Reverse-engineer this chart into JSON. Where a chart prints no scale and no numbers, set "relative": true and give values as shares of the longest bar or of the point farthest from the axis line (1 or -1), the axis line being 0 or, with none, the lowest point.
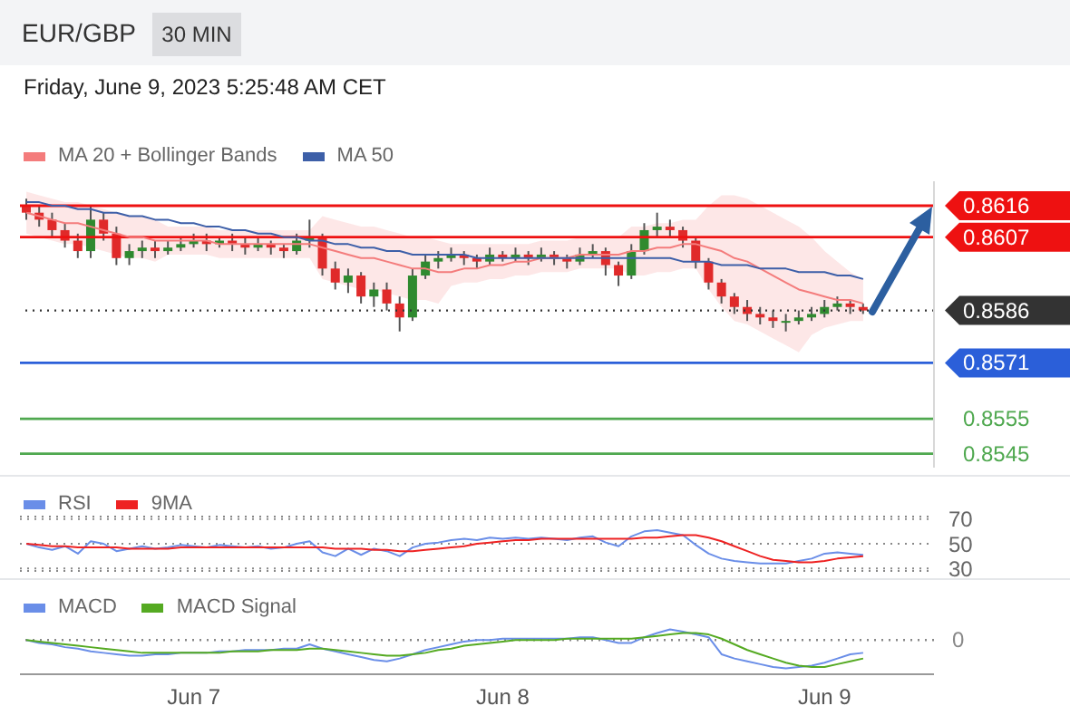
{
  "chart_data": [
    {
      "type": "candlestick",
      "title": "EUR/GBP",
      "subtitle": "30 MIN",
      "annotations": [
        "Friday, June 9, 2023 5:25:48 AM CET"
      ],
      "legend": "top left",
      "tick_labels": "y",
      "ylim": [
        0.8541,
        0.8623
      ],
      "yticks": [
        0.8616,
        0.8607,
        0.8586,
        0.8571,
        0.8555,
        0.8545
      ],
      "categories": [
        null,
        null,
        null,
        null,
        null,
        null,
        null,
        null,
        null,
        null,
        null,
        null,
        null,
        null,
        null,
        null,
        null,
        null,
        null,
        null,
        null,
        null,
        null,
        null,
        null,
        null,
        null,
        null,
        null,
        null,
        null,
        null,
        null,
        null,
        null,
        null,
        null,
        null,
        null,
        null,
        null,
        null,
        null,
        null,
        null,
        null,
        null,
        null,
        null,
        null,
        null,
        null,
        null,
        null,
        null,
        null,
        null,
        null,
        null,
        null,
        null,
        null,
        null,
        null,
        null,
        null
      ],
      "ohlc": [
        [
          0.8616,
          0.8618,
          0.8612,
          0.8614
        ],
        [
          0.8614,
          0.8616,
          0.861,
          0.8612
        ],
        [
          0.8612,
          0.8614,
          0.8607,
          0.8609
        ],
        [
          0.8609,
          0.8611,
          0.8604,
          0.8606
        ],
        [
          0.8606,
          0.8608,
          0.8601,
          0.8603
        ],
        [
          0.8603,
          0.8616,
          0.8601,
          0.8612
        ],
        [
          0.8612,
          0.8614,
          0.8606,
          0.8608
        ],
        [
          0.8608,
          0.861,
          0.8599,
          0.8601
        ],
        [
          0.8601,
          0.8605,
          0.8599,
          0.8603
        ],
        [
          0.8603,
          0.8606,
          0.8601,
          0.8604
        ],
        [
          0.8604,
          0.8606,
          0.8601,
          0.8603
        ],
        [
          0.8603,
          0.8606,
          0.8602,
          0.8604
        ],
        [
          0.8604,
          0.8607,
          0.8603,
          0.8605
        ],
        [
          0.8605,
          0.8608,
          0.8604,
          0.8606
        ],
        [
          0.8606,
          0.8608,
          0.8603,
          0.8605
        ],
        [
          0.8605,
          0.8607,
          0.8604,
          0.8606
        ],
        [
          0.8606,
          0.8608,
          0.8603,
          0.8605
        ],
        [
          0.8605,
          0.8607,
          0.8602,
          0.8604
        ],
        [
          0.8604,
          0.8607,
          0.8603,
          0.8605
        ],
        [
          0.8605,
          0.8606,
          0.8602,
          0.8604
        ],
        [
          0.8604,
          0.8605,
          0.8601,
          0.8603
        ],
        [
          0.8603,
          0.8608,
          0.8602,
          0.8606
        ],
        [
          0.8606,
          0.8612,
          0.8604,
          0.8607
        ],
        [
          0.8607,
          0.8608,
          0.8596,
          0.8598
        ],
        [
          0.8598,
          0.86,
          0.8592,
          0.8594
        ],
        [
          0.8594,
          0.8598,
          0.8591,
          0.8596
        ],
        [
          0.8596,
          0.8597,
          0.8588,
          0.859
        ],
        [
          0.859,
          0.8594,
          0.8587,
          0.8592
        ],
        [
          0.8592,
          0.8594,
          0.8586,
          0.8588
        ],
        [
          0.8588,
          0.859,
          0.858,
          0.8584
        ],
        [
          0.8584,
          0.8598,
          0.8583,
          0.8596
        ],
        [
          0.8596,
          0.8602,
          0.8595,
          0.86
        ],
        [
          0.86,
          0.8603,
          0.8598,
          0.8601
        ],
        [
          0.8601,
          0.8604,
          0.86,
          0.8602
        ],
        [
          0.8602,
          0.8603,
          0.8599,
          0.8601
        ],
        [
          0.8601,
          0.8602,
          0.8598,
          0.86
        ],
        [
          0.86,
          0.8604,
          0.8599,
          0.8602
        ],
        [
          0.8602,
          0.8603,
          0.86,
          0.8601
        ],
        [
          0.8601,
          0.8604,
          0.86,
          0.8602
        ],
        [
          0.8602,
          0.8603,
          0.8599,
          0.8601
        ],
        [
          0.8601,
          0.8604,
          0.86,
          0.8602
        ],
        [
          0.8602,
          0.8603,
          0.8599,
          0.8601
        ],
        [
          0.8601,
          0.8602,
          0.8598,
          0.86
        ],
        [
          0.86,
          0.8604,
          0.8599,
          0.8602
        ],
        [
          0.8602,
          0.8605,
          0.8601,
          0.8603
        ],
        [
          0.8603,
          0.8604,
          0.8596,
          0.8599
        ],
        [
          0.8599,
          0.86,
          0.8593,
          0.8596
        ],
        [
          0.8596,
          0.8605,
          0.8595,
          0.8603
        ],
        [
          0.8603,
          0.8611,
          0.8602,
          0.8609
        ],
        [
          0.8609,
          0.8614,
          0.8607,
          0.861
        ],
        [
          0.861,
          0.8612,
          0.8607,
          0.8609
        ],
        [
          0.8609,
          0.861,
          0.8604,
          0.8606
        ],
        [
          0.8606,
          0.8607,
          0.8598,
          0.86
        ],
        [
          0.86,
          0.8601,
          0.8592,
          0.8594
        ],
        [
          0.8594,
          0.8595,
          0.8588,
          0.859
        ],
        [
          0.859,
          0.8591,
          0.8585,
          0.8587
        ],
        [
          0.8587,
          0.8589,
          0.8583,
          0.8585
        ],
        [
          0.8585,
          0.8587,
          0.8582,
          0.8584
        ],
        [
          0.8584,
          0.8586,
          0.8581,
          0.8583
        ],
        [
          0.8583,
          0.8585,
          0.858,
          0.8583
        ],
        [
          0.8583,
          0.8586,
          0.8582,
          0.8584
        ],
        [
          0.8584,
          0.8587,
          0.8583,
          0.8585
        ],
        [
          0.8585,
          0.8589,
          0.8584,
          0.8587
        ],
        [
          0.8587,
          0.859,
          0.8586,
          0.8588
        ],
        [
          0.8588,
          0.8589,
          0.8585,
          0.8587
        ],
        [
          0.8587,
          0.8588,
          0.8585,
          0.8586
        ]
      ],
      "series": [
        {
          "name": "MA 20 + Bollinger Bands",
          "type": "line",
          "color": "#f47c7c",
          "values": [
            0.8614,
            0.8613,
            0.8612,
            0.8611,
            0.8611,
            0.861,
            0.8609,
            0.8608,
            0.8607,
            0.8607,
            0.8606,
            0.8606,
            0.8606,
            0.8606,
            0.8606,
            0.8605,
            0.8605,
            0.8605,
            0.8605,
            0.8605,
            0.8605,
            0.8605,
            0.8605,
            0.8604,
            0.8603,
            0.8602,
            0.8601,
            0.8601,
            0.86,
            0.8599,
            0.8598,
            0.8598,
            0.8597,
            0.8597,
            0.8598,
            0.8598,
            0.8599,
            0.8599,
            0.86,
            0.86,
            0.8601,
            0.8601,
            0.8601,
            0.8602,
            0.8602,
            0.8602,
            0.8602,
            0.8603,
            0.8603,
            0.8604,
            0.8604,
            0.8605,
            0.8605,
            0.8604,
            0.8603,
            0.8601,
            0.86,
            0.8598,
            0.8596,
            0.8594,
            0.8592,
            0.8591,
            0.859,
            0.8589,
            0.8589,
            0.8588
          ],
          "lower": [
            0.8608,
            0.8607,
            0.8606,
            0.8605,
            0.8605,
            0.8604,
            0.8603,
            0.8602,
            0.8601,
            0.8601,
            0.86,
            0.8602,
            0.8602,
            0.8602,
            0.8602,
            0.8601,
            0.8601,
            0.8601,
            0.8601,
            0.8601,
            0.8601,
            0.8601,
            0.8601,
            0.8595,
            0.8594,
            0.8593,
            0.8592,
            0.8592,
            0.8591,
            0.859,
            0.8589,
            0.8589,
            0.8588,
            0.8593,
            0.8594,
            0.8594,
            0.8595,
            0.8595,
            0.8596,
            0.8596,
            0.8597,
            0.8597,
            0.8597,
            0.8598,
            0.8598,
            0.8598,
            0.8598,
            0.8596,
            0.8596,
            0.8597,
            0.8597,
            0.8598,
            0.8598,
            0.8592,
            0.8587,
            0.8583,
            0.8582,
            0.858,
            0.8578,
            0.8576,
            0.8574,
            0.8579,
            0.8581,
            0.8582,
            0.8583,
            0.8583
          ],
          "upper": [
            0.862,
            0.8619,
            0.8618,
            0.8617,
            0.8617,
            0.8616,
            0.8615,
            0.8614,
            0.8613,
            0.8613,
            0.8612,
            0.861,
            0.861,
            0.861,
            0.861,
            0.8609,
            0.8609,
            0.8609,
            0.8609,
            0.8609,
            0.8609,
            0.8609,
            0.8609,
            0.8613,
            0.8612,
            0.8611,
            0.861,
            0.861,
            0.8609,
            0.8608,
            0.8607,
            0.8607,
            0.8606,
            0.8605,
            0.8605,
            0.8605,
            0.8605,
            0.8605,
            0.8605,
            0.8605,
            0.8606,
            0.8606,
            0.8606,
            0.8607,
            0.8607,
            0.8607,
            0.8607,
            0.861,
            0.861,
            0.8611,
            0.8611,
            0.8612,
            0.8612,
            0.8616,
            0.8619,
            0.8619,
            0.8618,
            0.8616,
            0.8614,
            0.8612,
            0.861,
            0.8607,
            0.8603,
            0.86,
            0.8597,
            0.8595
          ]
        },
        {
          "name": "MA 50",
          "type": "line",
          "color": "#3d5fa8",
          "values": [
            0.8617,
            0.8617,
            0.8616,
            0.8616,
            0.8615,
            0.8615,
            0.8614,
            0.8614,
            0.8613,
            0.8613,
            0.8612,
            0.8612,
            0.8611,
            0.8611,
            0.861,
            0.861,
            0.8609,
            0.8609,
            0.8608,
            0.8608,
            0.8607,
            0.8607,
            0.8606,
            0.8606,
            0.8605,
            0.8605,
            0.8604,
            0.8604,
            0.8603,
            0.8603,
            0.8602,
            0.8602,
            0.8602,
            0.8602,
            0.8602,
            0.8601,
            0.8601,
            0.8601,
            0.8601,
            0.8601,
            0.8601,
            0.8601,
            0.8601,
            0.8601,
            0.8601,
            0.8601,
            0.8601,
            0.8601,
            0.8601,
            0.8601,
            0.8601,
            0.86,
            0.86,
            0.86,
            0.8599,
            0.8599,
            0.8599,
            0.8598,
            0.8598,
            0.8598,
            0.8597,
            0.8597,
            0.8597,
            0.8596,
            0.8596,
            0.8595
          ]
        }
      ],
      "ref_lines": [
        {
          "axis": "y",
          "value": 0.8616,
          "color": "#ee1111",
          "line_style": "solid"
        },
        {
          "axis": "y",
          "value": 0.8607,
          "color": "#ee1111",
          "line_style": "solid"
        },
        {
          "axis": "y",
          "value": 0.8586,
          "color": "#333333",
          "line_style": "dotted"
        },
        {
          "axis": "y",
          "value": 0.8571,
          "color": "#2b5fd9",
          "line_style": "solid"
        },
        {
          "axis": "y",
          "value": 0.8555,
          "color": "#4fa84f",
          "line_style": "solid"
        },
        {
          "axis": "y",
          "value": 0.8545,
          "color": "#4fa84f",
          "line_style": "solid"
        }
      ]
    },
    {
      "type": "line",
      "legend": "top left",
      "tick_labels": "y",
      "grid": "y",
      "ylim": [
        28,
        72
      ],
      "yticks": [
        30,
        50,
        70
      ],
      "categories": [
        null,
        null,
        null,
        null,
        null,
        null,
        null,
        null,
        null,
        null,
        null,
        null,
        null,
        null,
        null,
        null,
        null,
        null,
        null,
        null,
        null,
        null,
        null,
        null,
        null,
        null,
        null,
        null,
        null,
        null,
        null,
        null,
        null,
        null,
        null,
        null,
        null,
        null,
        null,
        null,
        null,
        null,
        null,
        null,
        null,
        null,
        null,
        null,
        null,
        null,
        null,
        null,
        null,
        null,
        null,
        null,
        null,
        null,
        null,
        null,
        null,
        null,
        null,
        null,
        null,
        null
      ],
      "series": [
        {
          "name": "RSI",
          "color": "#6a8ee8",
          "values": [
            50,
            47,
            45,
            48,
            42,
            52,
            50,
            44,
            46,
            48,
            46,
            47,
            49,
            48,
            47,
            49,
            48,
            47,
            48,
            46,
            47,
            50,
            52,
            43,
            40,
            46,
            41,
            46,
            44,
            40,
            47,
            50,
            51,
            53,
            54,
            53,
            55,
            54,
            55,
            54,
            55,
            54,
            53,
            55,
            56,
            51,
            48,
            56,
            60,
            61,
            59,
            57,
            49,
            42,
            38,
            36,
            35,
            34,
            34,
            34,
            36,
            38,
            42,
            43,
            42,
            41
          ]
        },
        {
          "name": "9MA",
          "color": "#ee2222",
          "values": [
            50,
            49,
            48,
            48,
            47,
            47,
            47,
            47,
            46,
            46,
            46,
            46,
            47,
            47,
            47,
            47,
            47,
            47,
            47,
            47,
            47,
            47,
            47,
            47,
            46,
            46,
            46,
            45,
            45,
            44,
            44,
            45,
            46,
            47,
            48,
            50,
            51,
            52,
            53,
            53,
            54,
            54,
            54,
            54,
            54,
            54,
            54,
            54,
            55,
            55,
            56,
            57,
            57,
            55,
            52,
            48,
            44,
            40,
            37,
            36,
            35,
            35,
            36,
            38,
            39,
            40
          ]
        }
      ]
    },
    {
      "type": "line",
      "legend": "top left",
      "tick_labels": "x",
      "relative": true,
      "categories": [
        null,
        null,
        null,
        null,
        null,
        null,
        null,
        null,
        null,
        null,
        null,
        null,
        null,
        "Jun 7",
        null,
        null,
        null,
        null,
        null,
        null,
        null,
        null,
        null,
        null,
        null,
        null,
        null,
        null,
        null,
        null,
        null,
        null,
        null,
        null,
        null,
        null,
        null,
        "Jun 8",
        null,
        null,
        null,
        null,
        null,
        null,
        null,
        null,
        null,
        null,
        null,
        null,
        null,
        null,
        null,
        null,
        null,
        null,
        null,
        null,
        null,
        null,
        null,
        null,
        "Jun 9",
        null,
        null,
        null
      ],
      "series": [
        {
          "name": "MACD",
          "color": "#6a8ee8",
          "values": [
            0,
            -0.1,
            -0.15,
            -0.25,
            -0.3,
            -0.4,
            -0.45,
            -0.5,
            -0.55,
            -0.55,
            -0.5,
            -0.5,
            -0.45,
            -0.45,
            -0.45,
            -0.4,
            -0.4,
            -0.35,
            -0.35,
            -0.35,
            -0.3,
            -0.3,
            -0.15,
            -0.3,
            -0.4,
            -0.5,
            -0.6,
            -0.7,
            -0.75,
            -0.65,
            -0.5,
            -0.35,
            -0.25,
            -0.15,
            -0.05,
            0,
            0,
            0.05,
            0.05,
            0.05,
            0.05,
            0.05,
            0.05,
            0.1,
            0.1,
            0,
            -0.1,
            -0.1,
            0.1,
            0.25,
            0.38,
            0.3,
            0.2,
            0.1,
            -0.5,
            -0.65,
            -0.75,
            -0.85,
            -0.95,
            -1,
            -0.95,
            -0.9,
            -0.8,
            -0.65,
            -0.5,
            -0.45
          ]
        },
        {
          "name": "MACD Signal",
          "color": "#55aa22",
          "values": [
            0,
            -0.05,
            -0.1,
            -0.15,
            -0.2,
            -0.25,
            -0.3,
            -0.35,
            -0.4,
            -0.45,
            -0.45,
            -0.45,
            -0.45,
            -0.45,
            -0.45,
            -0.45,
            -0.4,
            -0.4,
            -0.4,
            -0.35,
            -0.35,
            -0.35,
            -0.3,
            -0.3,
            -0.35,
            -0.4,
            -0.45,
            -0.5,
            -0.55,
            -0.55,
            -0.5,
            -0.45,
            -0.35,
            -0.3,
            -0.2,
            -0.15,
            -0.1,
            -0.05,
            0,
            0,
            0,
            0,
            0.05,
            0.05,
            0.05,
            0.05,
            0.05,
            0.05,
            0.1,
            0.15,
            0.2,
            0.25,
            0.25,
            0.2,
            0.05,
            -0.15,
            -0.35,
            -0.5,
            -0.65,
            -0.8,
            -0.9,
            -0.95,
            -0.95,
            -0.85,
            -0.75,
            -0.65
          ]
        }
      ],
      "ref_lines": [
        {
          "axis": "y",
          "value": 0,
          "label": "0",
          "color": "#888888",
          "line_style": "dotted"
        }
      ]
    }
  ]
}
